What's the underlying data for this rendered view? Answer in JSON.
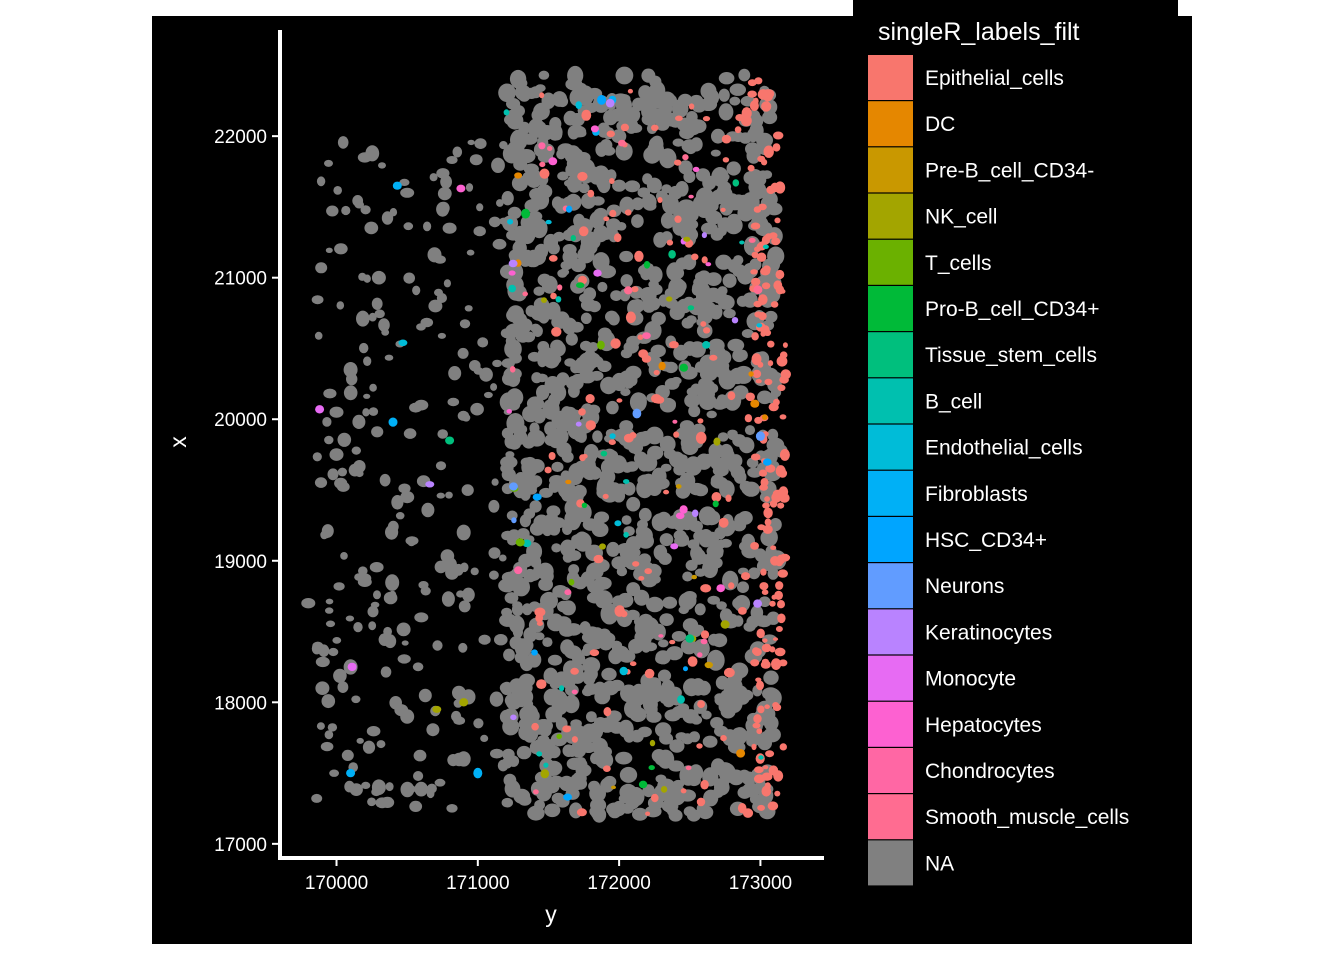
{
  "chart_data": {
    "type": "scatter",
    "title": "",
    "xlabel": "y",
    "ylabel": "x",
    "xlim": [
      169600,
      173450
    ],
    "ylim": [
      16900,
      22750
    ],
    "xticks": [
      170000,
      171000,
      172000,
      173000
    ],
    "yticks": [
      17000,
      18000,
      19000,
      20000,
      21000,
      22000
    ],
    "background": "#000000",
    "grid": false,
    "legend": {
      "title": "singleR_labels_filt",
      "position": "right",
      "entries": [
        {
          "label": "Epithelial_cells",
          "color": "#F8766D"
        },
        {
          "label": "DC",
          "color": "#E58700"
        },
        {
          "label": "Pre-B_cell_CD34-",
          "color": "#C99800"
        },
        {
          "label": "NK_cell",
          "color": "#A3A500"
        },
        {
          "label": "T_cells",
          "color": "#6BB100"
        },
        {
          "label": "Pro-B_cell_CD34+",
          "color": "#00BA38"
        },
        {
          "label": "Tissue_stem_cells",
          "color": "#00BF7D"
        },
        {
          "label": "B_cell",
          "color": "#00C0AF"
        },
        {
          "label": "Endothelial_cells",
          "color": "#00BCD8"
        },
        {
          "label": "Fibroblasts",
          "color": "#00B0F6"
        },
        {
          "label": "HSC_CD34+",
          "color": "#00A5FF"
        },
        {
          "label": "Neurons",
          "color": "#619CFF"
        },
        {
          "label": "Keratinocytes",
          "color": "#B983FF"
        },
        {
          "label": "Monocyte",
          "color": "#E76BF3"
        },
        {
          "label": "Hepatocytes",
          "color": "#FD61D1"
        },
        {
          "label": "Chondrocytes",
          "color": "#FF67A4"
        },
        {
          "label": "Smooth_muscle_cells",
          "color": "#FF6C91"
        },
        {
          "label": "NA",
          "color": "#808080"
        }
      ]
    },
    "series": [
      {
        "name": "NA",
        "color": "#808080",
        "description_free_points": [
          [
            171200,
            22300
          ],
          [
            171500,
            22250
          ],
          [
            171800,
            22200
          ],
          [
            172100,
            22150
          ],
          [
            172400,
            22100
          ],
          [
            172700,
            22000
          ],
          [
            171300,
            21800
          ],
          [
            171700,
            21700
          ],
          [
            172000,
            21650
          ],
          [
            172400,
            21600
          ],
          [
            172800,
            21550
          ],
          [
            171250,
            21300
          ],
          [
            171650,
            21200
          ],
          [
            172050,
            21150
          ],
          [
            172450,
            21100
          ],
          [
            172850,
            21050
          ],
          [
            171300,
            20700
          ],
          [
            171700,
            20650
          ],
          [
            172100,
            20550
          ],
          [
            172500,
            20500
          ],
          [
            172850,
            20450
          ],
          [
            171250,
            20100
          ],
          [
            171650,
            20050
          ],
          [
            172050,
            19950
          ],
          [
            172450,
            19900
          ],
          [
            172850,
            19850
          ],
          [
            171300,
            19500
          ],
          [
            171700,
            19450
          ],
          [
            172100,
            19400
          ],
          [
            172500,
            19300
          ],
          [
            172850,
            19250
          ],
          [
            171300,
            18950
          ],
          [
            171700,
            18850
          ],
          [
            172100,
            18800
          ],
          [
            172500,
            18750
          ],
          [
            172850,
            18700
          ],
          [
            171400,
            18300
          ],
          [
            171800,
            18200
          ],
          [
            172200,
            18150
          ],
          [
            172600,
            18100
          ],
          [
            172900,
            18050
          ],
          [
            171500,
            17700
          ],
          [
            171900,
            17650
          ],
          [
            172300,
            17600
          ],
          [
            172700,
            17550
          ],
          [
            171600,
            17300
          ],
          [
            172000,
            17250
          ],
          [
            172400,
            17200
          ],
          [
            170200,
            21850
          ],
          [
            170500,
            21600
          ],
          [
            170800,
            21350
          ],
          [
            170300,
            21000
          ],
          [
            170700,
            20800
          ],
          [
            170100,
            20350
          ],
          [
            170600,
            20100
          ],
          [
            170000,
            19750
          ],
          [
            170500,
            19450
          ],
          [
            170900,
            19200
          ],
          [
            170200,
            18850
          ],
          [
            170600,
            18600
          ],
          [
            170100,
            18250
          ],
          [
            170500,
            17900
          ],
          [
            170900,
            17600
          ],
          [
            170300,
            17400
          ],
          [
            169900,
            18100
          ],
          [
            169800,
            18700
          ],
          [
            170000,
            20050
          ]
        ]
      }
    ],
    "highlighted_points": [
      {
        "label": "Fibroblasts",
        "x": 170430,
        "y": 21650
      },
      {
        "label": "Hepatocytes",
        "x": 170880,
        "y": 21630
      },
      {
        "label": "Monocyte",
        "x": 169880,
        "y": 20070
      },
      {
        "label": "Endothelial_cells",
        "x": 170470,
        "y": 20540
      },
      {
        "label": "Tissue_stem_cells",
        "x": 170800,
        "y": 19850
      },
      {
        "label": "Keratinocytes",
        "x": 170660,
        "y": 19540
      },
      {
        "label": "Fibroblasts",
        "x": 170400,
        "y": 19980
      },
      {
        "label": "NK_cell",
        "x": 170710,
        "y": 17950
      },
      {
        "label": "NK_cell",
        "x": 170900,
        "y": 18000
      },
      {
        "label": "Fibroblasts",
        "x": 170100,
        "y": 17500
      },
      {
        "label": "Fibroblasts",
        "x": 171000,
        "y": 17500
      },
      {
        "label": "Monocyte",
        "x": 170110,
        "y": 18250
      },
      {
        "label": "HSC_CD34+",
        "x": 171420,
        "y": 19450
      },
      {
        "label": "T_cells",
        "x": 171300,
        "y": 19130
      },
      {
        "label": "DC",
        "x": 172960,
        "y": 20110
      },
      {
        "label": "Neurons",
        "x": 173000,
        "y": 19880
      },
      {
        "label": "NK_cell",
        "x": 172750,
        "y": 18550
      },
      {
        "label": "DC",
        "x": 172860,
        "y": 17640
      },
      {
        "label": "Tissue_stem_cells",
        "x": 172500,
        "y": 18450
      },
      {
        "label": "Keratinocytes",
        "x": 171250,
        "y": 21100
      }
    ]
  }
}
